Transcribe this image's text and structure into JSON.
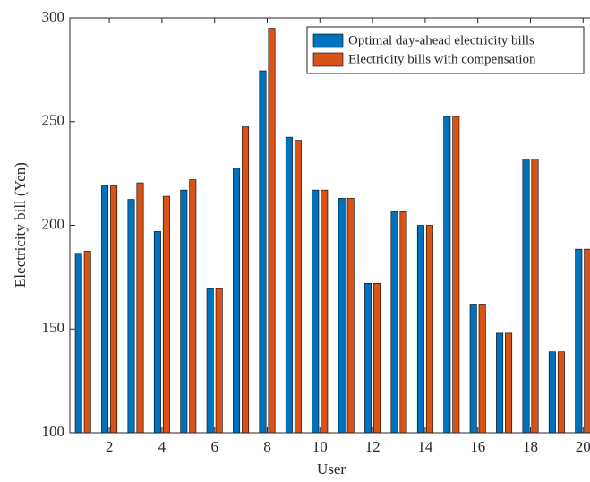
{
  "chart_data": {
    "type": "grouped_bar",
    "xlabel": "User",
    "ylabel": "Electricity bill (Yen)",
    "categories": [
      1,
      2,
      3,
      4,
      5,
      6,
      7,
      8,
      9,
      10,
      11,
      12,
      13,
      14,
      15,
      16,
      17,
      18,
      19,
      20
    ],
    "xlim": [
      0.5,
      20.5
    ],
    "xticks": [
      2,
      4,
      6,
      8,
      10,
      12,
      14,
      16,
      18,
      20
    ],
    "ylim": [
      100,
      300
    ],
    "yticks": [
      100,
      150,
      200,
      250,
      300
    ],
    "legend": "northeast",
    "series": [
      {
        "name": "Optimal day-ahead electricity bills",
        "color": "#0072BD",
        "values": [
          186.5,
          219,
          212.5,
          197,
          217,
          169.5,
          227.5,
          274.5,
          242.5,
          217,
          213,
          172,
          206.5,
          200,
          252.5,
          162,
          148,
          232,
          139,
          188.5
        ]
      },
      {
        "name": "Electricity bills with compensation",
        "color": "#D95319",
        "values": [
          187.5,
          219,
          220.5,
          214,
          222,
          169.5,
          247.5,
          295,
          241,
          217,
          213,
          172,
          206.5,
          200,
          252.5,
          162,
          148,
          232,
          139,
          188.5
        ]
      }
    ]
  }
}
